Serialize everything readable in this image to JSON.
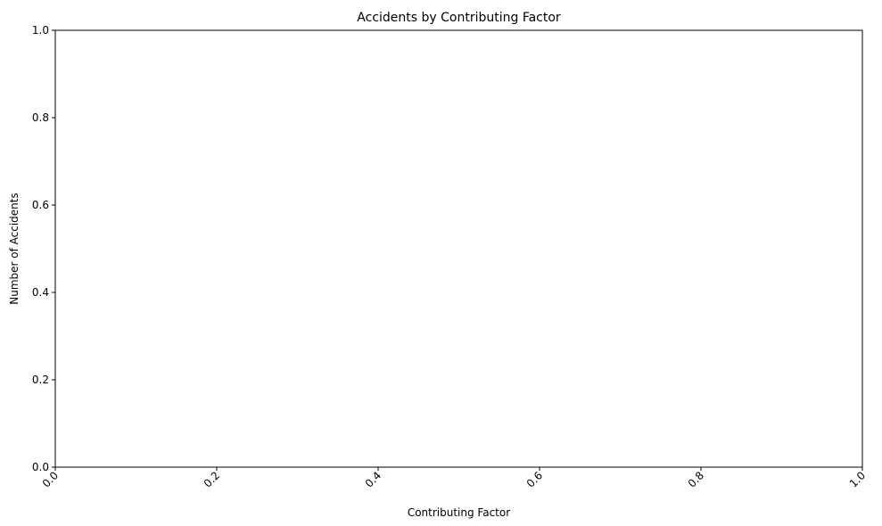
{
  "chart_data": {
    "type": "bar",
    "title": "Accidents by Contributing Factor",
    "xlabel": "Contributing Factor",
    "ylabel": "Number of Accidents",
    "categories": [],
    "values": [],
    "xlim": [
      0.0,
      1.0
    ],
    "ylim": [
      0.0,
      1.0
    ],
    "x_ticks": [
      "0.0",
      "0.2",
      "0.4",
      "0.6",
      "0.8",
      "1.0"
    ],
    "y_ticks": [
      "0.0",
      "0.2",
      "0.4",
      "0.6",
      "0.8",
      "1.0"
    ],
    "x_tick_rotation_degrees": 45,
    "grid": false,
    "legend": "none",
    "colors": {
      "background": "#ffffff",
      "axes": "#000000",
      "text": "#000000"
    }
  }
}
